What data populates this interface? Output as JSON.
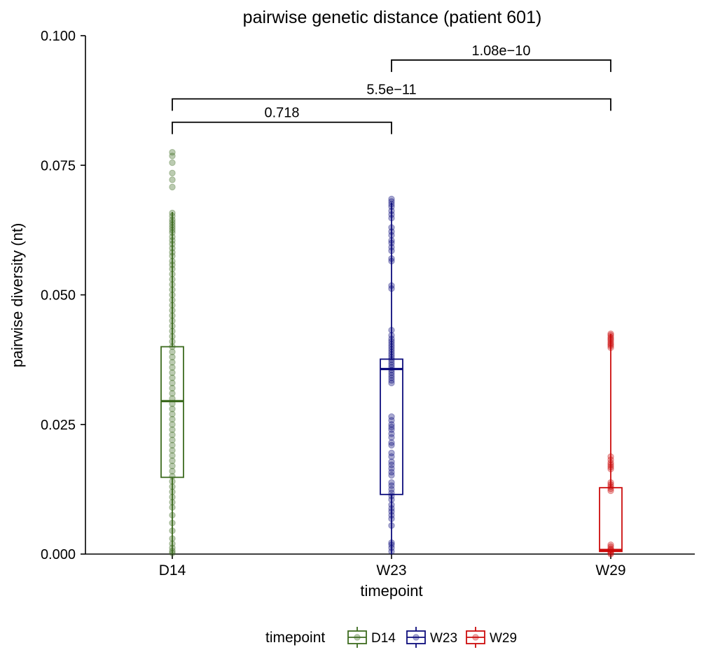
{
  "chart_data": {
    "type": "box",
    "title": "pairwise genetic distance (patient 601)",
    "xlabel": "timepoint",
    "ylabel": "pairwise diversity (nt)",
    "ylim": [
      0,
      0.1
    ],
    "yticks": [
      "0.000",
      "0.025",
      "0.050",
      "0.075",
      "0.100"
    ],
    "ytick_values": [
      0,
      0.025,
      0.05,
      0.075,
      0.1
    ],
    "categories": [
      "D14",
      "W23",
      "W29"
    ],
    "grid": false,
    "legend": {
      "title": "timepoint",
      "position": "bottom",
      "items": [
        {
          "label": "D14",
          "color": "#3d6b1f"
        },
        {
          "label": "W23",
          "color": "#0c0c7c"
        },
        {
          "label": "W29",
          "color": "#cc0c0c"
        }
      ]
    },
    "series": [
      {
        "category": "D14",
        "color": "#3d6b1f",
        "box": {
          "min": 0.0,
          "q1": 0.0148,
          "median": 0.0295,
          "q3": 0.04,
          "max": 0.066
        },
        "points": [
          0.0775,
          0.0768,
          0.0755,
          0.0735,
          0.0722,
          0.0708,
          0.0658,
          0.0652,
          0.0645,
          0.064,
          0.0635,
          0.063,
          0.0625,
          0.062,
          0.0612,
          0.0605,
          0.0598,
          0.059,
          0.0582,
          0.0575,
          0.0565,
          0.0558,
          0.055,
          0.054,
          0.053,
          0.052,
          0.051,
          0.05,
          0.049,
          0.048,
          0.047,
          0.046,
          0.045,
          0.044,
          0.043,
          0.042,
          0.041,
          0.04,
          0.039,
          0.038,
          0.037,
          0.036,
          0.035,
          0.034,
          0.033,
          0.032,
          0.031,
          0.03,
          0.029,
          0.028,
          0.027,
          0.026,
          0.025,
          0.024,
          0.023,
          0.022,
          0.021,
          0.02,
          0.019,
          0.018,
          0.017,
          0.016,
          0.015,
          0.014,
          0.013,
          0.012,
          0.011,
          0.01,
          0.009,
          0.0075,
          0.006,
          0.0045,
          0.003,
          0.002,
          0.0012,
          0.0006,
          0.0002
        ]
      },
      {
        "category": "W23",
        "color": "#0c0c7c",
        "box": {
          "min": 0.0,
          "q1": 0.0115,
          "median": 0.0357,
          "q3": 0.0376,
          "max": 0.0678
        },
        "points": [
          0.0685,
          0.068,
          0.0675,
          0.067,
          0.0662,
          0.0655,
          0.0648,
          0.063,
          0.0622,
          0.0615,
          0.0605,
          0.06,
          0.0592,
          0.0585,
          0.057,
          0.0565,
          0.0518,
          0.0512,
          0.0432,
          0.0422,
          0.0415,
          0.041,
          0.0405,
          0.04,
          0.0395,
          0.039,
          0.0385,
          0.038,
          0.0375,
          0.037,
          0.0365,
          0.036,
          0.0355,
          0.035,
          0.0345,
          0.034,
          0.0335,
          0.033,
          0.0265,
          0.0258,
          0.025,
          0.0245,
          0.024,
          0.0232,
          0.0225,
          0.0215,
          0.021,
          0.0195,
          0.0188,
          0.0178,
          0.0172,
          0.0165,
          0.0158,
          0.0152,
          0.0138,
          0.0132,
          0.0125,
          0.0118,
          0.0112,
          0.0105,
          0.0095,
          0.0088,
          0.0082,
          0.0075,
          0.0068,
          0.0055,
          0.0022,
          0.0018,
          0.0012,
          0.0005
        ]
      },
      {
        "category": "W29",
        "color": "#cc0c0c",
        "box": {
          "min": 0.0,
          "q1": 0.0005,
          "median": 0.0008,
          "q3": 0.0128,
          "max": 0.0425
        },
        "points": [
          0.0425,
          0.0422,
          0.0418,
          0.0415,
          0.0412,
          0.0408,
          0.0405,
          0.0402,
          0.0398,
          0.0188,
          0.0182,
          0.0176,
          0.0172,
          0.0168,
          0.0164,
          0.0138,
          0.0134,
          0.013,
          0.0126,
          0.0122,
          0.0018,
          0.0014,
          0.001,
          0.0008,
          0.0005,
          0.0002,
          0.0
        ]
      }
    ],
    "comparisons": [
      {
        "from": "D14",
        "to": "W23",
        "label": "0.718",
        "y": 0.0833
      },
      {
        "from": "D14",
        "to": "W29",
        "label": "5.5e−11",
        "y": 0.0878
      },
      {
        "from": "W23",
        "to": "W29",
        "label": "1.08e−10",
        "y": 0.0953
      }
    ]
  }
}
